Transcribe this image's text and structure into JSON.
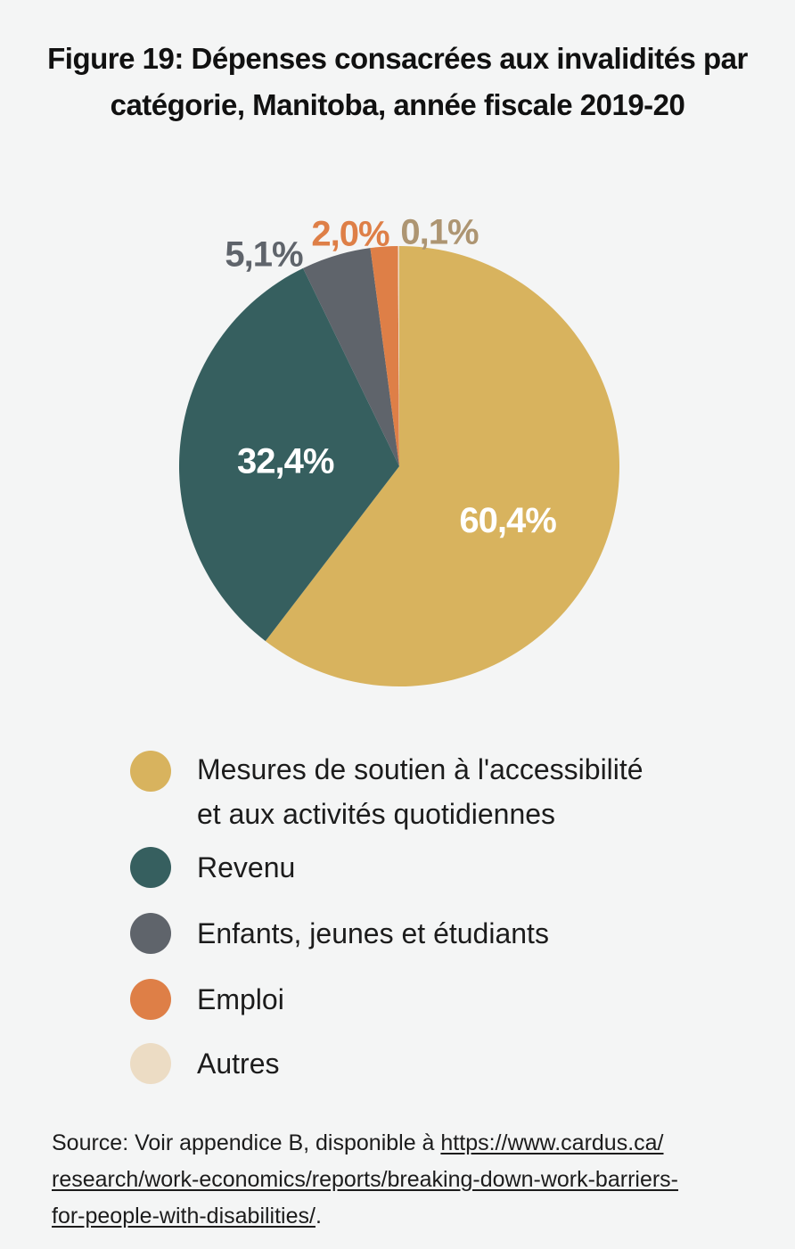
{
  "title": {
    "line1": "Figure 19: Dépenses consacrées aux invalidités par",
    "line2": "catégorie, Manitoba, année fiscale 2019-20"
  },
  "chart_data": {
    "type": "pie",
    "title": "Figure 19: Dépenses consacrées aux invalidités par catégorie, Manitoba, année fiscale 2019-20",
    "slices": [
      {
        "label": "Mesures de soutien à l'accessibilité et aux activités quotidiennes",
        "value": 60.4,
        "display": "60,4%",
        "color": "#d8b35e",
        "label_color": "#ffffff",
        "label_position": "inside"
      },
      {
        "label": "Revenu",
        "value": 32.4,
        "display": "32,4%",
        "color": "#365f5f",
        "label_color": "#ffffff",
        "label_position": "inside"
      },
      {
        "label": "Enfants, jeunes et étudiants",
        "value": 5.1,
        "display": "5,1%",
        "color": "#5f646b",
        "label_color": "#5f646b",
        "label_position": "outside"
      },
      {
        "label": "Emploi",
        "value": 2.0,
        "display": "2,0%",
        "color": "#de7f47",
        "label_color": "#de7f47",
        "label_position": "outside"
      },
      {
        "label": "Autres",
        "value": 0.1,
        "display": "0,1%",
        "color": "#ecdcc4",
        "label_color": "#ad9572",
        "label_position": "outside"
      }
    ],
    "legend_placement": "bottom"
  },
  "legend": {
    "items": [
      {
        "line1": "Mesures de soutien à l'accessibilité",
        "line2": "et aux activités quotidiennes",
        "color": "#d8b35e"
      },
      {
        "line1": "Revenu",
        "line2": "",
        "color": "#365f5f"
      },
      {
        "line1": "Enfants, jeunes et étudiants",
        "line2": "",
        "color": "#5f646b"
      },
      {
        "line1": "Emploi",
        "line2": "",
        "color": "#de7f47"
      },
      {
        "line1": "Autres",
        "line2": "",
        "color": "#ecdcc4"
      }
    ]
  },
  "source": {
    "prefix": "Source: Voir appendice B, disponible à ",
    "link_line1": "https://www.cardus.ca/",
    "link_line2": "research/work-economics/reports/breaking-down-work-barriers-",
    "link_line3": "for-people-with-disabilities/",
    "suffix": "."
  }
}
